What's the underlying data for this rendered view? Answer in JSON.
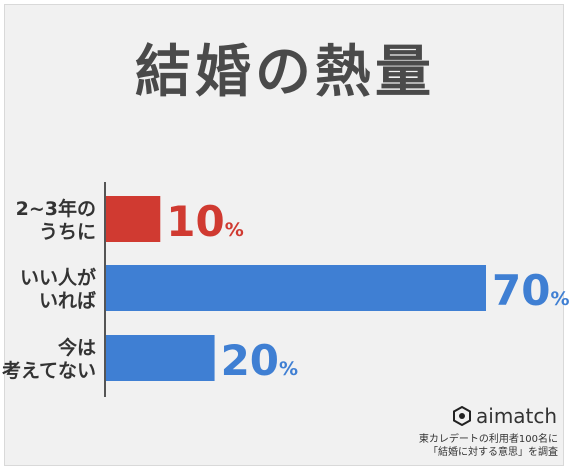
{
  "chart_data": {
    "type": "bar",
    "orientation": "horizontal",
    "title": "結婚の熱量",
    "categories": [
      [
        "2~3年の",
        "うちに"
      ],
      [
        "いい人が",
        "いれば"
      ],
      [
        "今は",
        "考えてない"
      ]
    ],
    "values": [
      10,
      70,
      20
    ],
    "value_unit": "%",
    "bar_colors": [
      "#d03a31",
      "#3f7fd3",
      "#3f7fd3"
    ],
    "label_colors": [
      "#d03a31",
      "#3f7fd3",
      "#3f7fd3"
    ],
    "xlim": [
      0,
      70
    ],
    "grid": false,
    "legend": "none"
  },
  "brand": {
    "name": "aimatch"
  },
  "source_note": {
    "line1": "東カレデートの利用者100名に",
    "line2": "「結婚に対する意思」を調査"
  }
}
